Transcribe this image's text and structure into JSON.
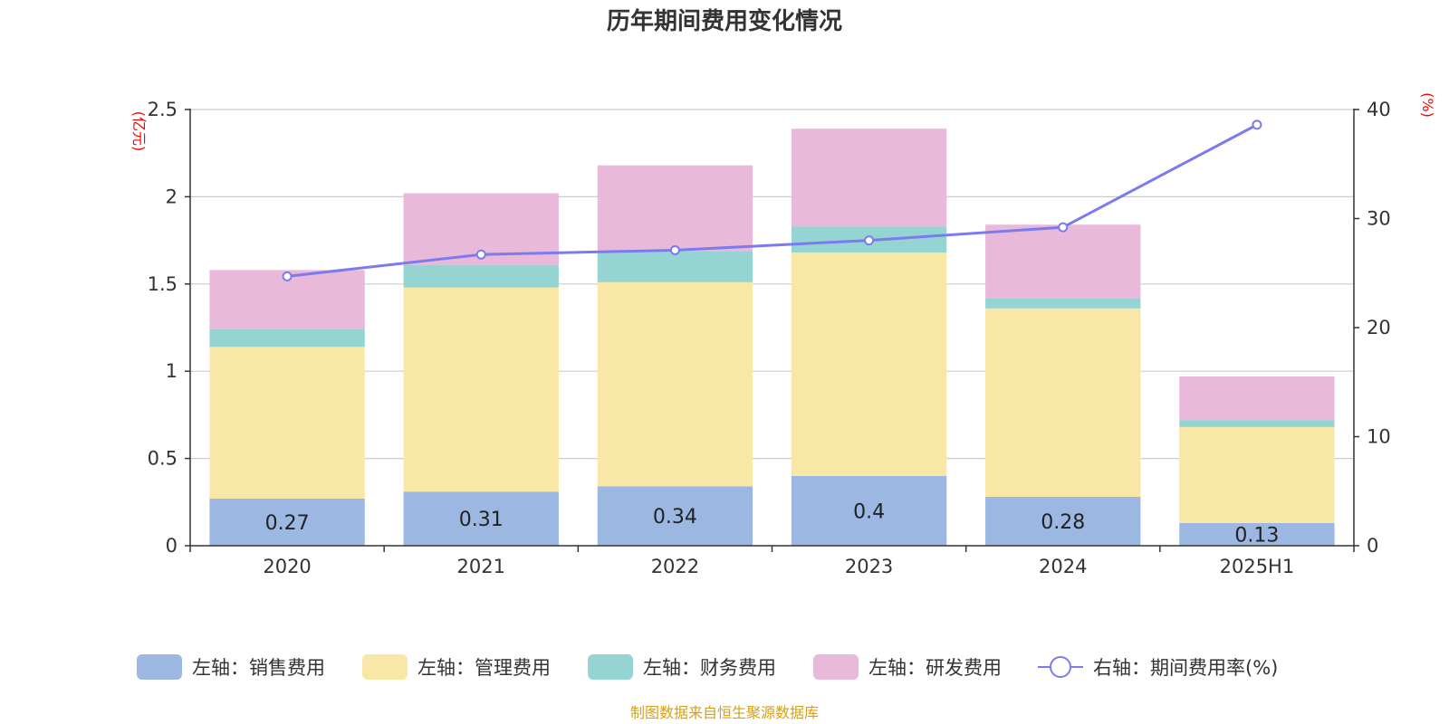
{
  "chart_data": {
    "type": "bar",
    "title": "历年期间费用变化情况",
    "categories": [
      "2020",
      "2021",
      "2022",
      "2023",
      "2024",
      "2025H1"
    ],
    "left_axis": {
      "unit": "(亿元)",
      "ylim": [
        0,
        2.5
      ],
      "ticks": [
        "0",
        "0.5",
        "1",
        "1.5",
        "2",
        "2.5"
      ],
      "tick_values": [
        0,
        0.5,
        1,
        1.5,
        2,
        2.5
      ]
    },
    "right_axis": {
      "unit": "(%)",
      "ylim": [
        0,
        40
      ],
      "ticks": [
        "0",
        "10",
        "20",
        "30",
        "40"
      ],
      "tick_values": [
        0,
        10,
        20,
        30,
        40
      ]
    },
    "series": [
      {
        "name": "左轴：销售费用",
        "color": "#9bb7e2",
        "values": [
          0.27,
          0.31,
          0.34,
          0.4,
          0.28,
          0.13
        ],
        "labels": [
          "0.27",
          "0.31",
          "0.34",
          "0.4",
          "0.28",
          "0.13"
        ]
      },
      {
        "name": "左轴：管理费用",
        "color": "#f8e7a6",
        "values": [
          0.87,
          1.17,
          1.17,
          1.28,
          1.08,
          0.55
        ]
      },
      {
        "name": "左轴：财务费用",
        "color": "#96d4d4",
        "values": [
          0.1,
          0.13,
          0.18,
          0.15,
          0.06,
          0.04
        ]
      },
      {
        "name": "左轴：研发费用",
        "color": "#e8b9d9",
        "values": [
          0.34,
          0.41,
          0.49,
          0.56,
          0.42,
          0.25
        ]
      }
    ],
    "line": {
      "name": "右轴：期间费用率(%)",
      "color": "#7b7bef",
      "values": [
        24.7,
        26.7,
        27.1,
        28.0,
        29.2,
        38.6
      ]
    },
    "grid": true,
    "legend_position": "bottom"
  },
  "source": "制图数据来自恒生聚源数据库"
}
